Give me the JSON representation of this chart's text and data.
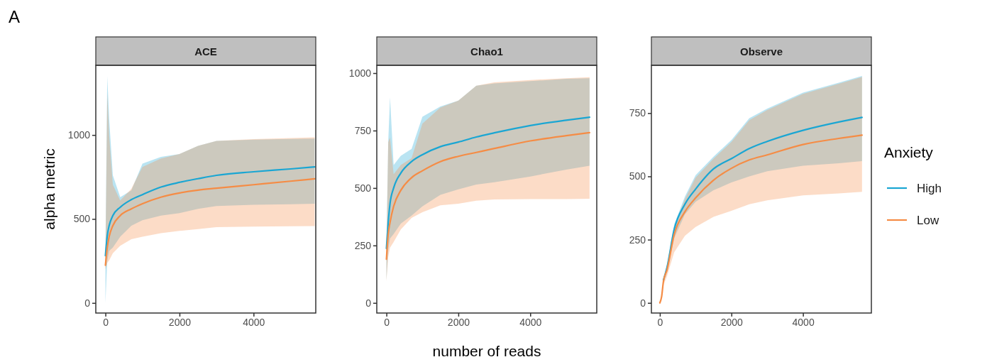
{
  "chart_data": [
    {
      "type": "line",
      "title": "ACE",
      "ylabel": "alpha metric",
      "annotations": [
        "A"
      ],
      "x": [
        0,
        50,
        100,
        200,
        400,
        700,
        1000,
        1500,
        2000,
        2500,
        3000,
        4000,
        5000,
        5650
      ],
      "xlim": [
        -260,
        5680
      ],
      "ylim": [
        -60,
        1415
      ],
      "xticks": [
        0,
        2000,
        4000
      ],
      "yticks": [
        0,
        500,
        1000
      ],
      "series": [
        {
          "color": "#1aa6d3",
          "values": [
            282,
            400,
            460,
            520,
            570,
            615,
            645,
            690,
            718,
            740,
            760,
            781,
            798,
            810
          ],
          "lower": [
            0,
            250,
            310,
            330,
            394,
            460,
            493,
            520,
            535,
            560,
            577,
            584,
            588,
            591
          ],
          "upper": [
            300,
            1350,
            1100,
            760,
            630,
            670,
            830,
            870,
            887,
            935,
            965,
            972,
            976,
            979
          ]
        },
        {
          "color": "#f58c45",
          "values": [
            225,
            330,
            394,
            460,
            520,
            560,
            591,
            630,
            655,
            672,
            683,
            704,
            725,
            739
          ],
          "lower": [
            200,
            239,
            253,
            296,
            340,
            380,
            394,
            415,
            429,
            440,
            451,
            455,
            457,
            458
          ],
          "upper": [
            260,
            1250,
            1000,
            704,
            610,
            680,
            810,
            860,
            887,
            935,
            965,
            975,
            982,
            986
          ]
        }
      ]
    },
    {
      "type": "line",
      "title": "Chao1",
      "xlabel": "number of reads",
      "x": [
        0,
        50,
        100,
        200,
        400,
        700,
        1000,
        1500,
        2000,
        2500,
        3000,
        4000,
        5000,
        5650
      ],
      "xlim": [
        -268,
        5850
      ],
      "ylim": [
        -44,
        1034
      ],
      "xticks": [
        0,
        2000,
        4000
      ],
      "yticks": [
        0,
        250,
        500,
        750,
        1000
      ],
      "series": [
        {
          "color": "#1aa6d3",
          "values": [
            237,
            350,
            432,
            500,
            565,
            615,
            645,
            680,
            700,
            722,
            740,
            772,
            795,
            808
          ],
          "lower": [
            100,
            230,
            280,
            300,
            345,
            380,
            420,
            470,
            494,
            515,
            525,
            550,
            580,
            597
          ],
          "upper": [
            250,
            700,
            895,
            600,
            640,
            670,
            810,
            855,
            880,
            945,
            955,
            965,
            975,
            978
          ]
        },
        {
          "color": "#f58c45",
          "values": [
            190,
            300,
            350,
            420,
            490,
            545,
            575,
            615,
            638,
            655,
            672,
            705,
            728,
            741
          ],
          "lower": [
            95,
            200,
            240,
            265,
            320,
            370,
            395,
            425,
            432,
            445,
            450,
            452,
            452,
            453
          ],
          "upper": [
            230,
            700,
            720,
            560,
            600,
            630,
            780,
            850,
            880,
            945,
            960,
            970,
            978,
            982
          ]
        }
      ]
    },
    {
      "type": "line",
      "title": "Observe",
      "legend": "right",
      "legend_title": "Anxiety",
      "x": [
        0,
        50,
        100,
        200,
        400,
        700,
        1000,
        1500,
        2000,
        2500,
        3000,
        4000,
        5000,
        5650
      ],
      "xlim": [
        -236,
        5911
      ],
      "ylim": [
        -40,
        939
      ],
      "xticks": [
        0,
        2000,
        4000
      ],
      "yticks": [
        0,
        250,
        500,
        750
      ],
      "series": [
        {
          "name": "High",
          "color": "#1aa6d3",
          "values": [
            null,
            null,
            90,
            140,
            290,
            390,
            450,
            530,
            570,
            610,
            638,
            682,
            715,
            733
          ],
          "lower": [
            0,
            25,
            80,
            125,
            255,
            350,
            400,
            445,
            476,
            500,
            520,
            542,
            552,
            560
          ],
          "upper": [
            0,
            32,
            95,
            150,
            310,
            420,
            505,
            578,
            644,
            730,
            768,
            831,
            870,
            897
          ]
        },
        {
          "name": "Low",
          "color": "#f58c45",
          "values": [
            0,
            25,
            85,
            130,
            270,
            360,
            415,
            485,
            532,
            565,
            585,
            626,
            650,
            663
          ],
          "lower": [
            0,
            20,
            70,
            105,
            200,
            265,
            300,
            340,
            364,
            390,
            405,
            425,
            433,
            439
          ],
          "upper": [
            0,
            30,
            90,
            145,
            300,
            410,
            495,
            570,
            636,
            722,
            762,
            826,
            866,
            893
          ]
        }
      ]
    }
  ]
}
